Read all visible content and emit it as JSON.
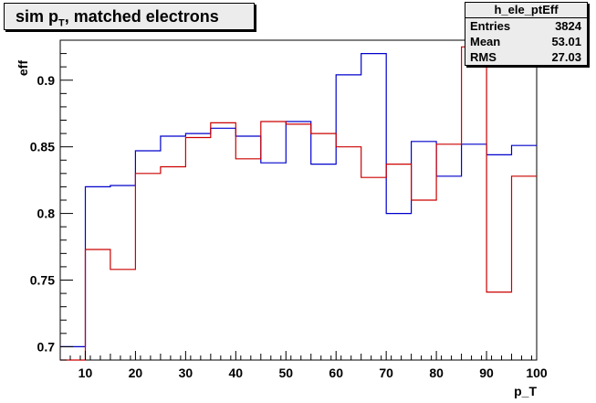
{
  "title": {
    "prefix": "sim p",
    "subscript": "T",
    "suffix": ", matched electrons"
  },
  "stats": {
    "name": "h_ele_ptEff",
    "rows": [
      {
        "label": "Entries",
        "value": "3824"
      },
      {
        "label": "Mean",
        "value": "53.01"
      },
      {
        "label": "RMS",
        "value": "27.03"
      }
    ]
  },
  "chart_data": {
    "type": "line",
    "xlabel": "p_T",
    "ylabel": "eff",
    "xlim": [
      5,
      100
    ],
    "ylim": [
      0.69,
      0.93
    ],
    "x_ticks": [
      10,
      20,
      30,
      40,
      50,
      60,
      70,
      80,
      90,
      100
    ],
    "y_ticks": [
      0.7,
      0.75,
      0.8,
      0.85,
      0.9
    ],
    "y_tick_labels": [
      "0.7",
      "0.75",
      "0.8",
      "0.85",
      "0.9"
    ],
    "bin_edges": [
      5,
      10,
      15,
      20,
      25,
      30,
      35,
      40,
      45,
      50,
      55,
      60,
      65,
      70,
      75,
      80,
      85,
      90,
      95,
      100
    ],
    "series": [
      {
        "color": "#0000cc",
        "values": [
          0.7,
          0.82,
          0.821,
          0.847,
          0.858,
          0.86,
          0.864,
          0.858,
          0.838,
          0.869,
          0.837,
          0.904,
          0.92,
          0.8,
          0.854,
          0.828,
          0.852,
          0.844,
          0.851
        ]
      },
      {
        "color": "#cc0000",
        "values": [
          0.69,
          0.773,
          0.758,
          0.83,
          0.835,
          0.857,
          0.868,
          0.841,
          0.869,
          0.867,
          0.86,
          0.85,
          0.827,
          0.837,
          0.81,
          0.852,
          0.925,
          0.741,
          0.828
        ]
      }
    ]
  }
}
